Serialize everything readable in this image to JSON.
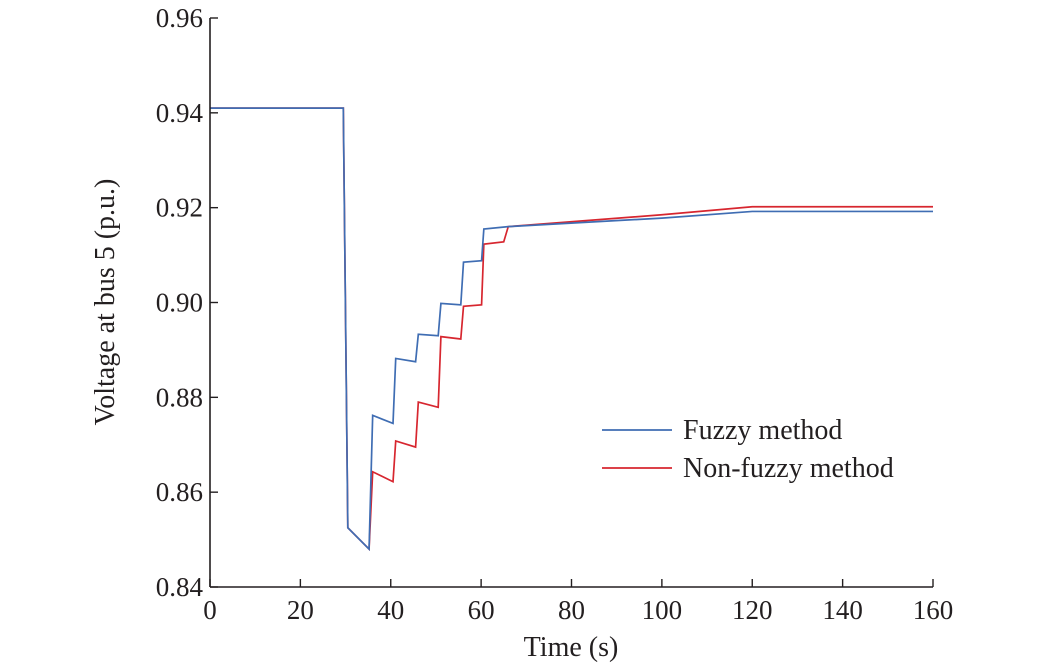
{
  "chart_data": {
    "type": "line",
    "xlabel": "Time (s)",
    "ylabel": "Voltage at bus 5 (p.u.)",
    "xlim": [
      0,
      160
    ],
    "ylim": [
      0.84,
      0.96
    ],
    "xticks": [
      0,
      20,
      40,
      60,
      80,
      100,
      120,
      140,
      160
    ],
    "yticks": [
      0.84,
      0.86,
      0.88,
      0.9,
      0.92,
      0.94,
      0.96
    ],
    "xtick_labels": [
      "0",
      "20",
      "40",
      "60",
      "80",
      "100",
      "120",
      "140",
      "160"
    ],
    "ytick_labels": [
      "0.84",
      "0.86",
      "0.88",
      "0.90",
      "0.92",
      "0.94",
      "0.96"
    ],
    "grid": false,
    "legend_position": "right",
    "series": [
      {
        "name": "Fuzzy method",
        "color": "#3f6db3",
        "x": [
          0,
          29.5,
          30.5,
          35.2,
          36,
          40.5,
          41.1,
          45.5,
          46.1,
          50.5,
          51.1,
          55.5,
          56.1,
          60.1,
          60.6,
          66,
          100,
          120,
          160
        ],
        "y": [
          0.941,
          0.941,
          0.8525,
          0.848,
          0.8762,
          0.8745,
          0.8882,
          0.8875,
          0.8933,
          0.893,
          0.8998,
          0.8995,
          0.9085,
          0.9088,
          0.9155,
          0.916,
          0.9178,
          0.9192,
          0.9192
        ]
      },
      {
        "name": "Non-fuzzy method",
        "color": "#d7262f",
        "x": [
          0,
          29.5,
          30.5,
          35.2,
          36,
          40.5,
          41.1,
          45.5,
          46.1,
          50.5,
          51.1,
          55.5,
          56.1,
          60.1,
          60.6,
          65,
          66,
          100,
          120,
          160
        ],
        "y": [
          0.941,
          0.941,
          0.8525,
          0.848,
          0.8643,
          0.8622,
          0.8708,
          0.8695,
          0.879,
          0.8779,
          0.8928,
          0.8923,
          0.8992,
          0.8995,
          0.9123,
          0.9128,
          0.916,
          0.9185,
          0.9202,
          0.9202
        ]
      }
    ]
  }
}
